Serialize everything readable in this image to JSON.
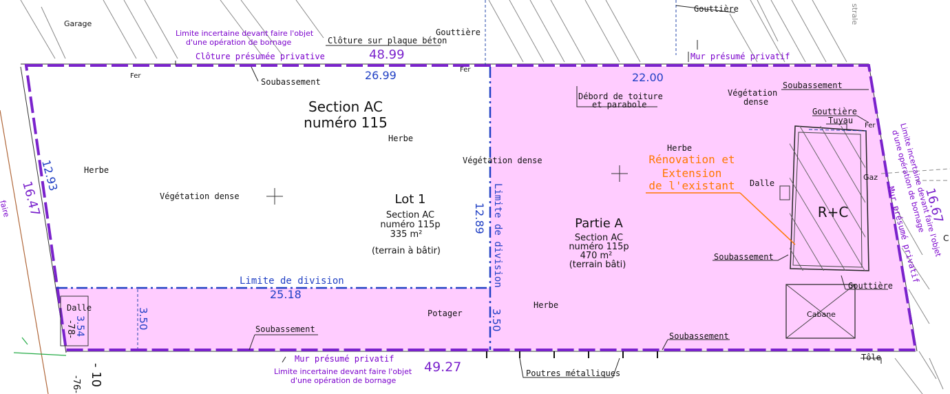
{
  "colors": {
    "lot_fill": "#ffccff",
    "purple_boundary": "#7a22cc",
    "blue_line": "#1f3fc4",
    "dim_blue": "#2244aa",
    "purple_text": "#7a00cc",
    "orange": "#ff7700",
    "black": "#111111",
    "hatch": "#777777"
  },
  "labels": {
    "garage": "Garage",
    "gouttiere_top_left": "Gouttière",
    "gouttiere_top_right": "Gouttière",
    "gouttiere_right": "Gouttière",
    "gouttiere_bottom_right": "Gouttière",
    "cloture_beton": "Clôture sur plaque béton",
    "limite_top_line1": "Limite incertaine devant faire l'objet",
    "limite_top_line2": "d'une opération de bornage",
    "cloture_privative": "Clôture présumée privative",
    "dim_48_99": "48.99",
    "mur_privatif_top": "Mur présumé privatif",
    "fer_1": "Fer",
    "fer_2": "Fer",
    "fer_3": "Fer",
    "dim_26_99": "26.99",
    "dim_22_00": "22.00",
    "soubassement_top_left": "Soubassement",
    "soubassement_top_right": "Soubassement",
    "soubassement_right": "Soubassement",
    "soubassement_bottom_left": "Soubassement",
    "soubassement_bottom_right": "Soubassement",
    "debord_line1": "Débord de toiture",
    "debord_line2": "et parabole",
    "vegetation_dense_right_1": "Végétation",
    "vegetation_dense_right_2": "dense",
    "section_ac": "Section AC",
    "numero_115": "numéro 115",
    "herbe_1": "Herbe",
    "herbe_2": "Herbe",
    "herbe_3": "Herbe",
    "herbe_4": "Herbe",
    "vegetation_dense_mid": "Végétation dense",
    "vegetation_dense_left": "Végétation dense",
    "tuyau": "Tuyau",
    "renovation_1": "Rénovation et",
    "renovation_2": "Extension",
    "renovation_3": "de l'existant",
    "dalle_right": "Dalle",
    "gaz": "Gaz",
    "rc": "R+C",
    "cabane": "Cabane",
    "lot1_title": "Lot 1",
    "lot1_sec": "Section AC",
    "lot1_num": "numéro 115p",
    "lot1_area": "335 m²",
    "lot1_type": "(terrain à bâtir)",
    "partie_title": "Partie A",
    "partie_sec": "Section AC",
    "partie_num": "numéro 115p",
    "partie_area": "470 m²",
    "partie_type": "(terrain bâti)",
    "limite_div_vertical": "Limite de division",
    "dim_12_89": "12.89",
    "limite_div_horizontal": "Limite de division",
    "dim_25_18": "25.18",
    "dim_12_93": "12.93",
    "dim_16_47": "16.47",
    "dim_16_67": "16.67",
    "dalle_left": "Dalle",
    "dim_3_54": "3.54",
    "code_78": "-78-",
    "dim_3_50_left": "3.50",
    "dim_3_50_right": "3.50",
    "potager": "Potager",
    "mur_privatif_bottom": "Mur présumé privatif",
    "limite_bottom_line1": "Limite incertaine devant faire l'objet",
    "limite_bottom_line2": "d'une opération de bornage",
    "dim_49_27": "49.27",
    "poutres": "Poutres métalliques",
    "tole": "Tôle",
    "code_76": "-76-",
    "dim_minus_10": "- 10",
    "right_v_1": "Limite incertaine devant faire l'objet",
    "right_v_2": "d'une opération de bornage",
    "right_v_3": "Mur présumé privatif",
    "partial_c": "C",
    "partial_faire": "faire",
    "partial_top_right": "strale"
  }
}
